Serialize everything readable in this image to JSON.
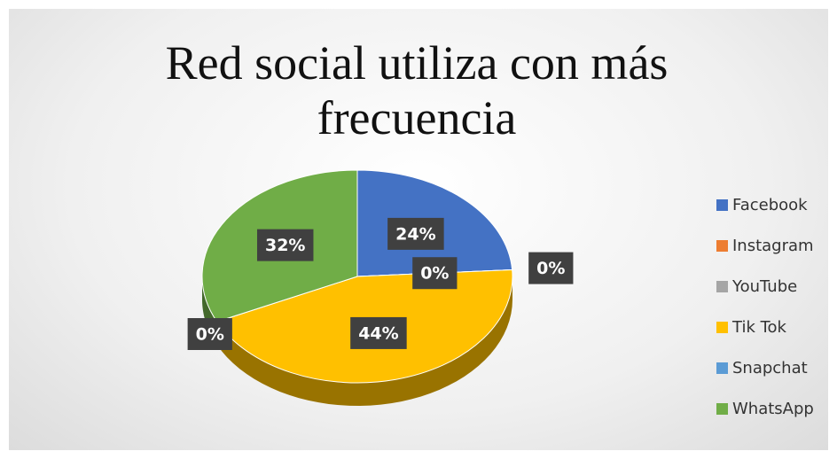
{
  "chart_data": {
    "type": "pie",
    "title": "Red social utiliza con más frecuencia",
    "categories": [
      "Facebook",
      "Instagram",
      "YouTube",
      "Tik Tok",
      "Snapchat",
      "WhatsApp"
    ],
    "values": [
      24,
      0,
      0,
      44,
      0,
      32
    ],
    "value_labels": [
      "24%",
      "0%",
      "0%",
      "44%",
      "0%",
      "32%"
    ],
    "colors": [
      "#4472c4",
      "#ed7d31",
      "#a5a5a5",
      "#ffc000",
      "#5b9bd5",
      "#70ad47"
    ],
    "legend": "right"
  }
}
